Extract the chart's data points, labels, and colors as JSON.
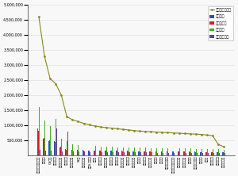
{
  "categories": [
    "현대건설힐스테이트",
    "롯데캐슬",
    "GS자이",
    "삼성래미안",
    "대우푸르지오",
    "포스코더샵",
    "현대아이파크",
    "SK뷰",
    "호반베르디움",
    "중흥S-클래스",
    "우미린",
    "한화포레나",
    "동원로얄듀크",
    "제일풍경채",
    "태영데시앙",
    "금강펜테리움",
    "반도유보라",
    "아이에스동서",
    "계룡건설",
    "모아미래도",
    "서희스타힐스",
    "한신더휴",
    "두산위브",
    "신동아파밀리에",
    "동문굿모닝힐맥스빌",
    "코오롱하늘채",
    "대방노블랜드",
    "모아엘가",
    "쌍용더플래티넘",
    "대명루첸",
    "에이스",
    "한라비발디",
    "유승한내들",
    "부영사랑으로"
  ],
  "참여지수": [
    900000,
    550000,
    480000,
    480000,
    260000,
    200000,
    190000,
    180000,
    170000,
    165000,
    160000,
    155000,
    150000,
    148000,
    145000,
    142000,
    140000,
    138000,
    135000,
    133000,
    130000,
    128000,
    126000,
    124000,
    122000,
    120000,
    118000,
    116000,
    114000,
    112000,
    110000,
    108000,
    105000,
    100000
  ],
  "미디어지수": [
    800000,
    580000,
    500000,
    450000,
    280000,
    190000,
    180000,
    172000,
    165000,
    160000,
    155000,
    150000,
    148000,
    145000,
    142000,
    138000,
    135000,
    132000,
    130000,
    128000,
    125000,
    123000,
    121000,
    119000,
    117000,
    115000,
    113000,
    111000,
    109000,
    107000,
    105000,
    102000,
    98000,
    90000
  ],
  "소통지수": [
    1600000,
    1150000,
    980000,
    1200000,
    550000,
    480000,
    360000,
    340000,
    320000,
    310000,
    300000,
    290000,
    280000,
    275000,
    270000,
    265000,
    260000,
    255000,
    250000,
    245000,
    242000,
    238000,
    235000,
    232000,
    228000,
    225000,
    222000,
    218000,
    215000,
    211000,
    208000,
    205000,
    200000,
    190000
  ],
  "커뮤니티지수": [
    190000,
    160000,
    140000,
    900000,
    130000,
    780000,
    125000,
    120000,
    115000,
    112000,
    110000,
    107000,
    105000,
    103000,
    100000,
    98000,
    96000,
    94000,
    92000,
    90000,
    88000,
    86000,
    85000,
    83000,
    81000,
    79000,
    77000,
    75000,
    73000,
    71000,
    69000,
    67000,
    65000,
    60000
  ],
  "브랜드평판지수": [
    4600000,
    3300000,
    2550000,
    2380000,
    2000000,
    1280000,
    1180000,
    1120000,
    1060000,
    1010000,
    970000,
    940000,
    920000,
    900000,
    880000,
    860000,
    840000,
    820000,
    800000,
    790000,
    780000,
    770000,
    760000,
    750000,
    740000,
    730000,
    720000,
    710000,
    700000,
    690000,
    670000,
    650000,
    360000,
    280000
  ],
  "bar_colors": [
    "#2255bb",
    "#cc2222",
    "#44aa22",
    "#7733aa"
  ],
  "line_color": "#888820",
  "background_color": "#f8f8f8",
  "ylim": [
    0,
    5000000
  ],
  "yticks": [
    500000,
    1000000,
    1500000,
    2000000,
    2500000,
    3000000,
    3500000,
    4000000,
    4500000,
    5000000
  ],
  "legend_labels": [
    "참여지수",
    "미디어지수",
    "소통지수",
    "커뮤니티지수",
    "브랜드평판지수"
  ]
}
